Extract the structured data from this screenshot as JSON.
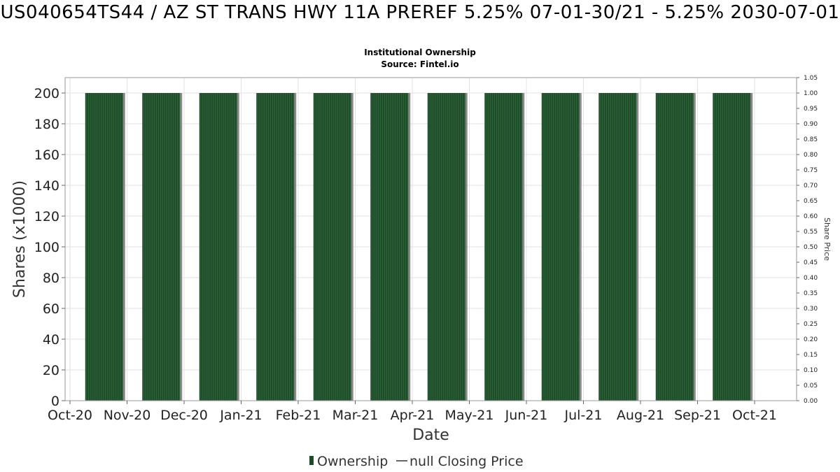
{
  "title": "US040654TS44 / AZ ST TRANS HWY 11A PREREF 5.25% 07-01-30/21 - 5.25% 2030-07-01",
  "subtitle_lines": [
    "Institutional Ownership",
    "Source: Fintel.io"
  ],
  "colors": {
    "bar": "#1f4a2a",
    "bar_stripe": "#2e6a3a",
    "bar_shadow": "#8a8a8a",
    "grid": "#e2e2e2",
    "frame": "#999999"
  },
  "chart_data": {
    "type": "bar",
    "title": "US040654TS44 / AZ ST TRANS HWY 11A PREREF 5.25% 07-01-30/21 - 5.25% 2030-07-01",
    "subtitle": "Institutional Ownership | Source: Fintel.io",
    "xlabel": "Date",
    "ylabel": "Shares (x1000)",
    "y2label": "Share Price",
    "x_ticks": [
      "Oct-20",
      "Nov-20",
      "Dec-20",
      "Jan-21",
      "Feb-21",
      "Mar-21",
      "Apr-21",
      "May-21",
      "Jun-21",
      "Jul-21",
      "Aug-21",
      "Sep-21",
      "Oct-21"
    ],
    "y_ticks": [
      0,
      20,
      40,
      60,
      80,
      100,
      120,
      140,
      160,
      180,
      200
    ],
    "y2_ticks": [
      "0.00",
      "0.05",
      "0.10",
      "0.15",
      "0.20",
      "0.25",
      "0.30",
      "0.35",
      "0.40",
      "0.45",
      "0.50",
      "0.55",
      "0.60",
      "0.65",
      "0.70",
      "0.75",
      "0.80",
      "0.85",
      "0.90",
      "0.95",
      "1.00",
      "1.05"
    ],
    "ylim": [
      0,
      210
    ],
    "y2lim": [
      0,
      1.05
    ],
    "grid": true,
    "series": [
      {
        "name": "Ownership",
        "type": "bar",
        "x": [
          "2020-11",
          "2020-12",
          "2021-01",
          "2021-02",
          "2021-03",
          "2021-04",
          "2021-05",
          "2021-06",
          "2021-07",
          "2021-08",
          "2021-09",
          "2021-10"
        ],
        "values": [
          200,
          200,
          200,
          200,
          200,
          200,
          200,
          200,
          200,
          200,
          200,
          200
        ]
      }
    ],
    "legend": {
      "placement": "bottom-center",
      "entries": [
        "Ownership",
        "null Closing Price"
      ]
    }
  }
}
